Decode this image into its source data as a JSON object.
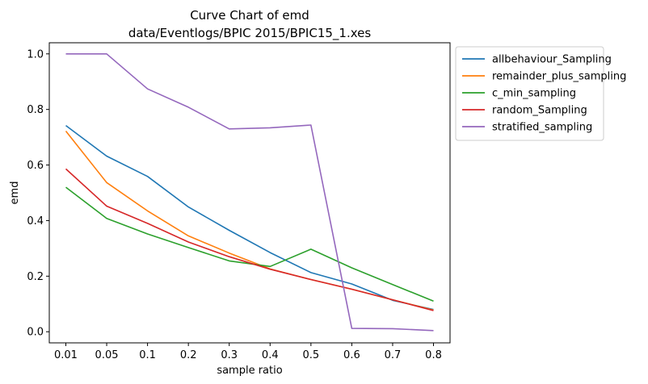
{
  "chart_data": {
    "type": "line",
    "title": "Curve Chart of emd",
    "subtitle": "data/Eventlogs/BPIC 2015/BPIC15_1.xes",
    "xlabel": "sample ratio",
    "ylabel": "emd",
    "categories": [
      "0.01",
      "0.05",
      "0.1",
      "0.2",
      "0.3",
      "0.4",
      "0.5",
      "0.6",
      "0.7",
      "0.8"
    ],
    "ylim": [
      -0.04,
      1.04
    ],
    "yticks": [
      "0.0",
      "0.2",
      "0.4",
      "0.6",
      "0.8",
      "1.0"
    ],
    "legend_position": "outside-upper-right",
    "grid": false,
    "series": [
      {
        "name": "allbehaviour_Sampling",
        "color": "#1f77b4",
        "values": [
          0.742,
          0.632,
          0.559,
          0.449,
          0.365,
          0.285,
          0.213,
          0.172,
          0.113,
          0.08
        ]
      },
      {
        "name": "remainder_plus_sampling",
        "color": "#ff7f0e",
        "values": [
          0.722,
          0.537,
          0.435,
          0.345,
          0.283,
          0.226,
          0.188,
          0.153,
          0.115,
          0.078
        ]
      },
      {
        "name": "c_min_sampling",
        "color": "#2ca02c",
        "values": [
          0.52,
          0.408,
          0.352,
          0.303,
          0.255,
          0.235,
          0.297,
          0.23,
          0.17,
          0.11
        ]
      },
      {
        "name": "random_Sampling",
        "color": "#d62728",
        "values": [
          0.586,
          0.452,
          0.39,
          0.323,
          0.27,
          0.225,
          0.188,
          0.153,
          0.115,
          0.076
        ]
      },
      {
        "name": "stratified_sampling",
        "color": "#9467bd",
        "values": [
          1.0,
          1.0,
          0.874,
          0.808,
          0.73,
          0.734,
          0.744,
          0.012,
          0.011,
          0.004
        ]
      }
    ]
  }
}
